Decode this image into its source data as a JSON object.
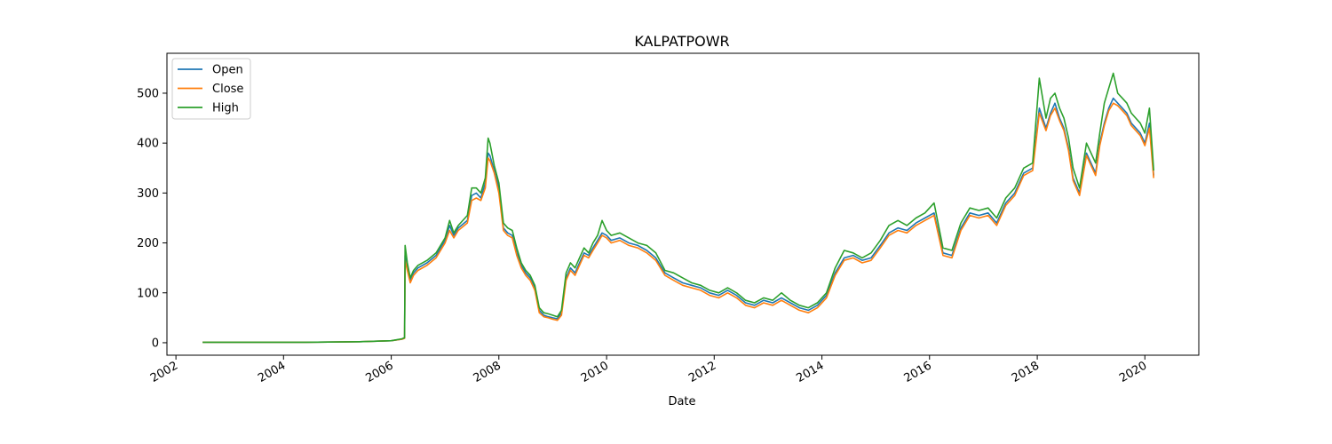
{
  "chart_data": {
    "type": "line",
    "title": "KALPATPOWR",
    "xlabel": "Date",
    "ylabel": "",
    "xlim": [
      "2001-11-01",
      "2021-01-01"
    ],
    "ylim": [
      -25,
      580
    ],
    "x_ticks": [
      "2002",
      "2004",
      "2006",
      "2008",
      "2010",
      "2012",
      "2014",
      "2016",
      "2018",
      "2020"
    ],
    "y_ticks": [
      0,
      100,
      200,
      300,
      400,
      500
    ],
    "grid": false,
    "legend": "top-left",
    "x": [
      "2002-07-01",
      "2003-06-01",
      "2004-06-01",
      "2005-06-01",
      "2006-01-01",
      "2006-03-15",
      "2006-04-01",
      "2006-04-05",
      "2006-04-20",
      "2006-05-10",
      "2006-06-01",
      "2006-07-01",
      "2006-09-01",
      "2006-11-01",
      "2007-01-01",
      "2007-02-01",
      "2007-03-01",
      "2007-04-01",
      "2007-06-01",
      "2007-07-01",
      "2007-08-01",
      "2007-09-01",
      "2007-10-01",
      "2007-10-20",
      "2007-11-01",
      "2007-12-01",
      "2008-01-01",
      "2008-02-01",
      "2008-03-01",
      "2008-04-01",
      "2008-05-01",
      "2008-06-01",
      "2008-07-01",
      "2008-08-01",
      "2008-09-01",
      "2008-10-01",
      "2008-11-01",
      "2008-12-01",
      "2009-01-01",
      "2009-02-01",
      "2009-03-01",
      "2009-04-01",
      "2009-05-01",
      "2009-06-01",
      "2009-07-01",
      "2009-08-01",
      "2009-09-01",
      "2009-10-01",
      "2009-11-01",
      "2009-12-01",
      "2010-01-01",
      "2010-02-01",
      "2010-04-01",
      "2010-06-01",
      "2010-08-01",
      "2010-10-01",
      "2010-12-01",
      "2011-02-01",
      "2011-04-01",
      "2011-06-01",
      "2011-08-01",
      "2011-10-01",
      "2011-12-01",
      "2012-02-01",
      "2012-04-01",
      "2012-06-01",
      "2012-08-01",
      "2012-10-01",
      "2012-12-01",
      "2013-02-01",
      "2013-04-01",
      "2013-06-01",
      "2013-08-01",
      "2013-10-01",
      "2013-12-01",
      "2014-02-01",
      "2014-04-01",
      "2014-06-01",
      "2014-08-01",
      "2014-10-01",
      "2014-12-01",
      "2015-02-01",
      "2015-04-01",
      "2015-06-01",
      "2015-08-01",
      "2015-10-01",
      "2015-12-01",
      "2016-02-01",
      "2016-04-01",
      "2016-06-01",
      "2016-08-01",
      "2016-10-01",
      "2016-12-01",
      "2017-02-01",
      "2017-04-01",
      "2017-06-01",
      "2017-08-01",
      "2017-10-01",
      "2017-12-01",
      "2018-01-15",
      "2018-03-01",
      "2018-04-01",
      "2018-05-01",
      "2018-06-01",
      "2018-07-01",
      "2018-08-01",
      "2018-09-01",
      "2018-10-15",
      "2018-12-01",
      "2019-02-01",
      "2019-03-01",
      "2019-04-01",
      "2019-05-01",
      "2019-06-01",
      "2019-07-01",
      "2019-08-01",
      "2019-09-01",
      "2019-10-01",
      "2019-11-01",
      "2019-12-01",
      "2020-01-01",
      "2020-02-01",
      "2020-03-01"
    ],
    "series": [
      {
        "name": "Open",
        "color": "#1f77b4",
        "values": [
          1,
          1,
          1,
          2,
          4,
          7,
          9,
          175,
          150,
          125,
          140,
          150,
          160,
          175,
          205,
          235,
          215,
          230,
          245,
          295,
          300,
          290,
          320,
          380,
          375,
          345,
          310,
          230,
          220,
          215,
          180,
          155,
          140,
          130,
          110,
          65,
          55,
          52,
          50,
          48,
          60,
          130,
          150,
          140,
          160,
          180,
          175,
          190,
          205,
          220,
          215,
          205,
          210,
          200,
          195,
          185,
          170,
          140,
          130,
          120,
          115,
          110,
          100,
          95,
          105,
          95,
          80,
          75,
          85,
          80,
          90,
          80,
          70,
          65,
          75,
          95,
          140,
          170,
          175,
          165,
          170,
          195,
          220,
          230,
          225,
          240,
          250,
          260,
          180,
          175,
          230,
          260,
          255,
          260,
          240,
          280,
          300,
          340,
          350,
          470,
          430,
          460,
          480,
          450,
          430,
          390,
          330,
          300,
          380,
          340,
          400,
          440,
          470,
          490,
          480,
          470,
          460,
          440,
          430,
          420,
          400,
          440,
          335
        ]
      },
      {
        "name": "Close",
        "color": "#ff7f0e",
        "values": [
          1,
          1,
          1,
          2,
          4,
          7,
          9,
          165,
          145,
          120,
          135,
          145,
          155,
          170,
          200,
          225,
          210,
          225,
          240,
          285,
          290,
          285,
          310,
          370,
          365,
          340,
          300,
          225,
          215,
          210,
          175,
          150,
          135,
          125,
          105,
          60,
          52,
          50,
          47,
          45,
          55,
          125,
          145,
          135,
          155,
          175,
          170,
          185,
          200,
          215,
          210,
          200,
          205,
          195,
          190,
          180,
          165,
          135,
          125,
          115,
          110,
          105,
          95,
          90,
          100,
          90,
          75,
          70,
          80,
          75,
          85,
          75,
          65,
          60,
          70,
          90,
          135,
          165,
          170,
          160,
          165,
          190,
          215,
          225,
          220,
          235,
          245,
          255,
          175,
          170,
          225,
          255,
          250,
          255,
          235,
          275,
          295,
          335,
          345,
          460,
          425,
          455,
          470,
          445,
          425,
          385,
          325,
          295,
          375,
          335,
          395,
          435,
          465,
          480,
          475,
          465,
          455,
          435,
          425,
          415,
          395,
          430,
          330
        ]
      },
      {
        "name": "High",
        "color": "#2ca02c",
        "values": [
          1,
          1,
          1,
          2,
          4,
          8,
          10,
          195,
          160,
          130,
          145,
          155,
          165,
          180,
          210,
          245,
          220,
          235,
          255,
          310,
          310,
          300,
          330,
          410,
          400,
          355,
          320,
          240,
          230,
          225,
          190,
          160,
          145,
          135,
          115,
          70,
          60,
          58,
          55,
          52,
          65,
          140,
          160,
          150,
          170,
          190,
          180,
          200,
          215,
          245,
          225,
          215,
          220,
          210,
          200,
          195,
          180,
          145,
          140,
          130,
          120,
          115,
          105,
          100,
          110,
          100,
          85,
          80,
          90,
          85,
          100,
          85,
          75,
          70,
          80,
          100,
          150,
          185,
          180,
          170,
          180,
          205,
          235,
          245,
          235,
          250,
          260,
          280,
          190,
          185,
          240,
          270,
          265,
          270,
          250,
          290,
          310,
          350,
          360,
          530,
          450,
          490,
          500,
          470,
          450,
          410,
          350,
          310,
          400,
          360,
          420,
          480,
          510,
          540,
          500,
          490,
          480,
          460,
          450,
          440,
          420,
          470,
          345
        ]
      }
    ]
  }
}
